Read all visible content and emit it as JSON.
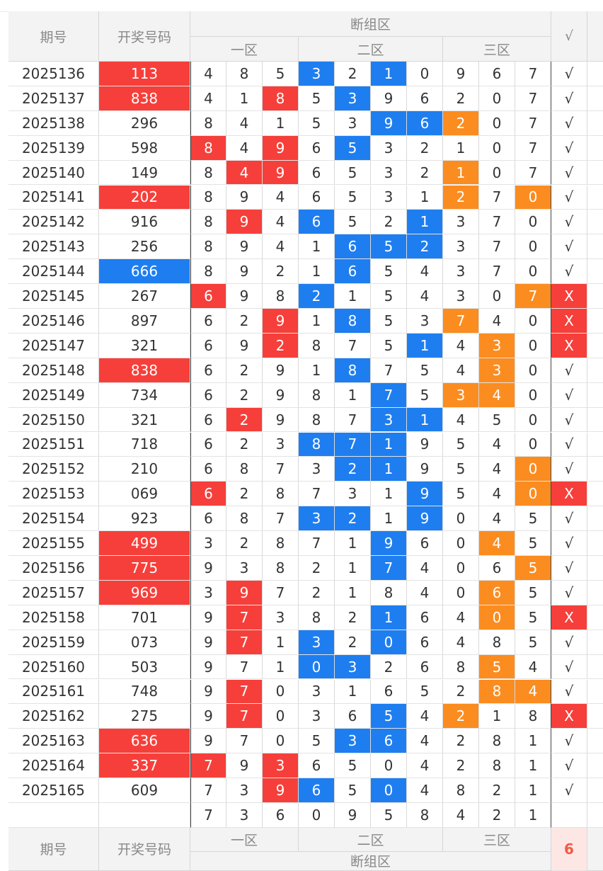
{
  "header": {
    "col_issue": "期号",
    "col_number": "开奖号码",
    "group_title": "断组区",
    "zone1": "一区",
    "zone2": "二区",
    "zone3": "三区",
    "check_col": "√"
  },
  "footer": {
    "col_issue": "期号",
    "col_number": "开奖号码",
    "zone1": "一区",
    "zone2": "二区",
    "zone3": "三区",
    "group_title": "断组区",
    "count": "6"
  },
  "summary_digits": [
    "7",
    "3",
    "6",
    "0",
    "9",
    "5",
    "8",
    "4",
    "2",
    "1"
  ],
  "colors": {
    "red": "#f63f3a",
    "blue": "#1e7ef0",
    "orange": "#fb8c20",
    "header_bg": "#f3f3f3"
  },
  "rows": [
    {
      "issue": "2025136",
      "number": "113",
      "nh": "r",
      "digits": [
        "4",
        "8",
        "5",
        "3",
        "2",
        "1",
        "0",
        "9",
        "6",
        "7"
      ],
      "hl": [
        3,
        5
      ],
      "mark": "√"
    },
    {
      "issue": "2025137",
      "number": "838",
      "nh": "r",
      "digits": [
        "4",
        "1",
        "8",
        "5",
        "3",
        "9",
        "6",
        "2",
        "0",
        "7"
      ],
      "hl": [
        2,
        4
      ],
      "mark": "√"
    },
    {
      "issue": "2025138",
      "number": "296",
      "nh": "",
      "digits": [
        "8",
        "4",
        "1",
        "5",
        "3",
        "9",
        "6",
        "2",
        "0",
        "7"
      ],
      "hl": [
        5,
        6,
        7
      ],
      "mark": "√"
    },
    {
      "issue": "2025139",
      "number": "598",
      "nh": "",
      "digits": [
        "8",
        "4",
        "9",
        "6",
        "5",
        "3",
        "2",
        "1",
        "0",
        "7"
      ],
      "hl": [
        0,
        2,
        4
      ],
      "mark": "√"
    },
    {
      "issue": "2025140",
      "number": "149",
      "nh": "",
      "digits": [
        "8",
        "4",
        "9",
        "6",
        "5",
        "3",
        "2",
        "1",
        "0",
        "7"
      ],
      "hl": [
        1,
        2,
        7
      ],
      "mark": "√"
    },
    {
      "issue": "2025141",
      "number": "202",
      "nh": "r",
      "digits": [
        "8",
        "9",
        "4",
        "6",
        "5",
        "3",
        "1",
        "2",
        "7",
        "0"
      ],
      "hl": [
        7,
        9
      ],
      "mark": "√"
    },
    {
      "issue": "2025142",
      "number": "916",
      "nh": "",
      "digits": [
        "8",
        "9",
        "4",
        "6",
        "5",
        "2",
        "1",
        "3",
        "7",
        "0"
      ],
      "hl": [
        1,
        3,
        6
      ],
      "mark": "√"
    },
    {
      "issue": "2025143",
      "number": "256",
      "nh": "",
      "digits": [
        "8",
        "9",
        "4",
        "1",
        "6",
        "5",
        "2",
        "3",
        "7",
        "0"
      ],
      "hl": [
        4,
        5,
        6
      ],
      "mark": "√"
    },
    {
      "issue": "2025144",
      "number": "666",
      "nh": "b",
      "digits": [
        "8",
        "9",
        "2",
        "1",
        "6",
        "5",
        "4",
        "3",
        "7",
        "0"
      ],
      "hl": [
        4
      ],
      "mark": "√"
    },
    {
      "issue": "2025145",
      "number": "267",
      "nh": "",
      "digits": [
        "6",
        "9",
        "8",
        "2",
        "1",
        "5",
        "4",
        "3",
        "0",
        "7"
      ],
      "hl": [
        0,
        3,
        9
      ],
      "mark": "X"
    },
    {
      "issue": "2025146",
      "number": "897",
      "nh": "",
      "digits": [
        "6",
        "2",
        "9",
        "1",
        "8",
        "5",
        "3",
        "7",
        "4",
        "0"
      ],
      "hl": [
        2,
        4,
        7
      ],
      "mark": "X"
    },
    {
      "issue": "2025147",
      "number": "321",
      "nh": "",
      "digits": [
        "6",
        "9",
        "2",
        "8",
        "7",
        "5",
        "1",
        "4",
        "3",
        "0"
      ],
      "hl": [
        2,
        6,
        8
      ],
      "mark": "X"
    },
    {
      "issue": "2025148",
      "number": "838",
      "nh": "r",
      "digits": [
        "6",
        "2",
        "9",
        "1",
        "8",
        "7",
        "5",
        "4",
        "3",
        "0"
      ],
      "hl": [
        4,
        8
      ],
      "mark": "√"
    },
    {
      "issue": "2025149",
      "number": "734",
      "nh": "",
      "digits": [
        "6",
        "2",
        "9",
        "8",
        "1",
        "7",
        "5",
        "3",
        "4",
        "0"
      ],
      "hl": [
        5,
        7,
        8
      ],
      "mark": "√"
    },
    {
      "issue": "2025150",
      "number": "321",
      "nh": "",
      "digits": [
        "6",
        "2",
        "9",
        "8",
        "7",
        "3",
        "1",
        "4",
        "5",
        "0"
      ],
      "hl": [
        1,
        5,
        6
      ],
      "mark": "√"
    },
    {
      "issue": "2025151",
      "number": "718",
      "nh": "",
      "digits": [
        "6",
        "2",
        "3",
        "8",
        "7",
        "1",
        "9",
        "5",
        "4",
        "0"
      ],
      "hl": [
        3,
        4,
        5
      ],
      "mark": "√"
    },
    {
      "issue": "2025152",
      "number": "210",
      "nh": "",
      "digits": [
        "6",
        "8",
        "7",
        "3",
        "2",
        "1",
        "9",
        "5",
        "4",
        "0"
      ],
      "hl": [
        4,
        5,
        9
      ],
      "mark": "√"
    },
    {
      "issue": "2025153",
      "number": "069",
      "nh": "",
      "digits": [
        "6",
        "2",
        "8",
        "7",
        "3",
        "1",
        "9",
        "5",
        "4",
        "0"
      ],
      "hl": [
        0,
        6,
        9
      ],
      "mark": "X"
    },
    {
      "issue": "2025154",
      "number": "923",
      "nh": "",
      "digits": [
        "6",
        "8",
        "7",
        "3",
        "2",
        "1",
        "9",
        "0",
        "4",
        "5"
      ],
      "hl": [
        3,
        4,
        6
      ],
      "mark": "√"
    },
    {
      "issue": "2025155",
      "number": "499",
      "nh": "r",
      "digits": [
        "3",
        "2",
        "8",
        "7",
        "1",
        "9",
        "6",
        "0",
        "4",
        "5"
      ],
      "hl": [
        5,
        8
      ],
      "mark": "√"
    },
    {
      "issue": "2025156",
      "number": "775",
      "nh": "r",
      "digits": [
        "9",
        "3",
        "8",
        "2",
        "1",
        "7",
        "4",
        "0",
        "6",
        "5"
      ],
      "hl": [
        5,
        9
      ],
      "mark": "√"
    },
    {
      "issue": "2025157",
      "number": "969",
      "nh": "r",
      "digits": [
        "3",
        "9",
        "7",
        "2",
        "1",
        "8",
        "4",
        "0",
        "6",
        "5"
      ],
      "hl": [
        1,
        8
      ],
      "mark": "√"
    },
    {
      "issue": "2025158",
      "number": "701",
      "nh": "",
      "digits": [
        "9",
        "7",
        "3",
        "8",
        "2",
        "1",
        "6",
        "4",
        "0",
        "5"
      ],
      "hl": [
        1,
        5,
        8
      ],
      "mark": "X"
    },
    {
      "issue": "2025159",
      "number": "073",
      "nh": "",
      "digits": [
        "9",
        "7",
        "1",
        "3",
        "2",
        "0",
        "6",
        "4",
        "8",
        "5"
      ],
      "hl": [
        1,
        3,
        5
      ],
      "mark": "√"
    },
    {
      "issue": "2025160",
      "number": "503",
      "nh": "",
      "digits": [
        "9",
        "7",
        "1",
        "0",
        "3",
        "2",
        "6",
        "8",
        "5",
        "4"
      ],
      "hl": [
        3,
        4,
        8
      ],
      "mark": "√"
    },
    {
      "issue": "2025161",
      "number": "748",
      "nh": "",
      "digits": [
        "9",
        "7",
        "0",
        "3",
        "1",
        "6",
        "5",
        "2",
        "8",
        "4"
      ],
      "hl": [
        1,
        8,
        9
      ],
      "mark": "√"
    },
    {
      "issue": "2025162",
      "number": "275",
      "nh": "",
      "digits": [
        "9",
        "7",
        "0",
        "3",
        "6",
        "5",
        "4",
        "2",
        "1",
        "8"
      ],
      "hl": [
        1,
        5,
        7
      ],
      "mark": "X"
    },
    {
      "issue": "2025163",
      "number": "636",
      "nh": "r",
      "digits": [
        "9",
        "7",
        "0",
        "5",
        "3",
        "6",
        "4",
        "2",
        "8",
        "1"
      ],
      "hl": [
        4,
        5
      ],
      "mark": "√"
    },
    {
      "issue": "2025164",
      "number": "337",
      "nh": "r",
      "digits": [
        "7",
        "9",
        "3",
        "6",
        "5",
        "0",
        "4",
        "2",
        "8",
        "1"
      ],
      "hl": [
        0,
        2
      ],
      "mark": "√"
    },
    {
      "issue": "2025165",
      "number": "609",
      "nh": "",
      "digits": [
        "7",
        "3",
        "9",
        "6",
        "5",
        "0",
        "4",
        "8",
        "2",
        "1"
      ],
      "hl": [
        2,
        3,
        5
      ],
      "mark": "√"
    }
  ]
}
